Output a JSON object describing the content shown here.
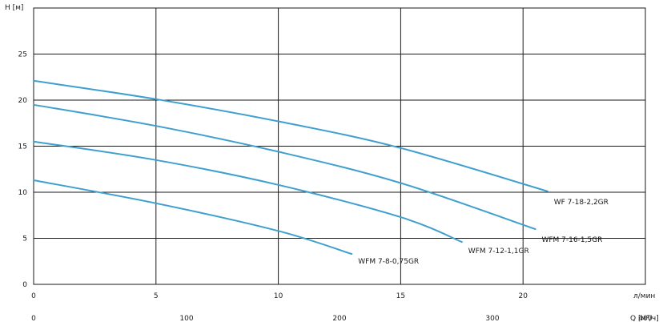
{
  "chart_data": {
    "type": "line",
    "ylabel": "H [м]",
    "xlabel": "л/мин",
    "x2label": "Q [м³/ч]",
    "xlim": [
      0,
      25
    ],
    "ylim": [
      0,
      30
    ],
    "x2lim": [
      0,
      400
    ],
    "x_ticks": [
      0,
      5,
      10,
      15,
      20
    ],
    "x2_ticks": [
      0,
      100,
      200,
      300,
      400
    ],
    "y_ticks": [
      0,
      5,
      10,
      15,
      20,
      25
    ],
    "grid": true,
    "colors": {
      "curve": "#3fa0d0",
      "grid": "#1a1a1a"
    },
    "series": [
      {
        "name": "WF 7-18-2,2GR",
        "x": [
          0,
          5,
          10,
          15,
          21
        ],
        "y": [
          22.1,
          20.1,
          17.7,
          14.8,
          10.1
        ]
      },
      {
        "name": "WFM 7-16-1,5GR",
        "x": [
          0,
          5,
          10,
          15,
          20.5
        ],
        "y": [
          19.5,
          17.2,
          14.4,
          11.0,
          6.0
        ]
      },
      {
        "name": "WFM 7-12-1,1GR",
        "x": [
          0,
          5,
          10,
          15,
          17.5
        ],
        "y": [
          15.5,
          13.5,
          10.8,
          7.3,
          4.6
        ]
      },
      {
        "name": "WFM 7-8-0,75GR",
        "x": [
          0,
          5,
          10,
          13
        ],
        "y": [
          11.3,
          8.8,
          5.8,
          3.3
        ]
      }
    ]
  }
}
